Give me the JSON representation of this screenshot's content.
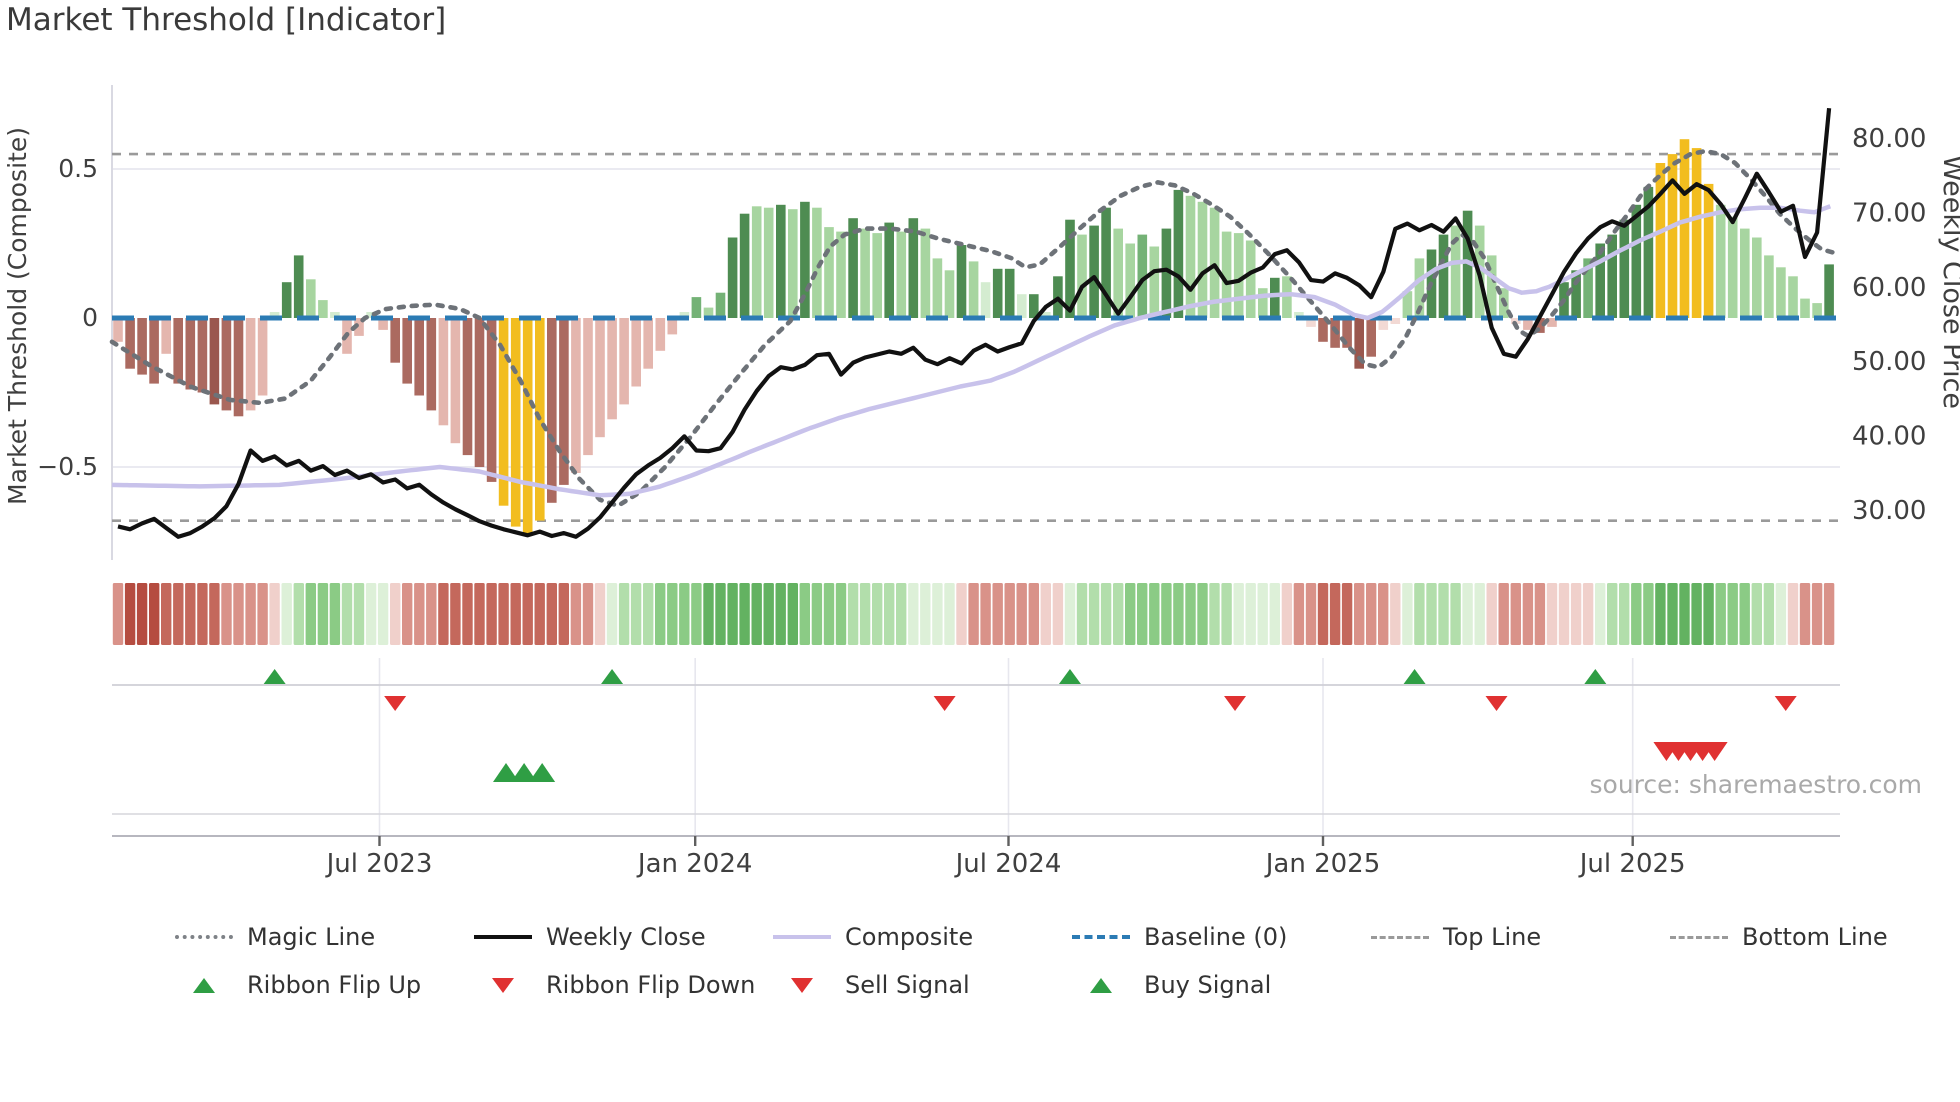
{
  "page": {
    "title": "Market Threshold [Indicator]",
    "source": "source: sharemaestro.com"
  },
  "chart_data": {
    "type": "bar",
    "title": "Market Threshold [Indicator]",
    "weeks": 143,
    "start_date": "2023-01-30",
    "frequency": "weekly",
    "left_axis": {
      "label": "Market Threshold (Composite)",
      "ticks": [
        "0.5",
        "0",
        "−0.5"
      ],
      "tick_values": [
        0.5,
        0,
        -0.5
      ],
      "range": [
        -0.81,
        0.78
      ]
    },
    "right_axis": {
      "label": "Weekly Close Price",
      "ticks": [
        "80.00",
        "70.00",
        "60.00",
        "50.00",
        "40.00",
        "30.00"
      ],
      "tick_values": [
        80,
        70,
        60,
        50,
        40,
        30
      ]
    },
    "x_axis": {
      "tick_labels": [
        "Jul 2023",
        "Jan 2024",
        "Jul 2024",
        "Jan 2025",
        "Jul 2025"
      ],
      "tick_weeks": [
        21.7,
        47.9,
        73.9,
        100.0,
        125.7
      ]
    },
    "baseline_value": 0,
    "top_line_value": 0.55,
    "bottom_line_value": -0.68,
    "histogram": {
      "values": [
        -0.08,
        -0.17,
        -0.19,
        -0.22,
        -0.12,
        -0.22,
        -0.24,
        -0.25,
        -0.29,
        -0.31,
        -0.33,
        -0.31,
        -0.26,
        0.02,
        0.12,
        0.21,
        0.13,
        0.06,
        0.02,
        -0.12,
        -0.06,
        0.02,
        -0.04,
        -0.15,
        -0.22,
        -0.26,
        -0.31,
        -0.36,
        -0.42,
        -0.46,
        -0.5,
        -0.55,
        -0.63,
        -0.7,
        -0.73,
        -0.68,
        -0.62,
        -0.56,
        -0.52,
        -0.46,
        -0.4,
        -0.34,
        -0.29,
        -0.23,
        -0.17,
        -0.11,
        -0.055,
        0.02,
        0.07,
        0.035,
        0.085,
        0.27,
        0.35,
        0.375,
        0.37,
        0.38,
        0.365,
        0.39,
        0.37,
        0.305,
        0.29,
        0.335,
        0.3,
        0.285,
        0.32,
        0.29,
        0.335,
        0.3,
        0.2,
        0.16,
        0.245,
        0.19,
        0.12,
        0.165,
        0.165,
        0.08,
        0.08,
        0.02,
        0.14,
        0.33,
        0.28,
        0.31,
        0.37,
        0.3,
        0.25,
        0.28,
        0.24,
        0.3,
        0.43,
        0.41,
        0.39,
        0.37,
        0.29,
        0.285,
        0.26,
        0.1,
        0.135,
        0.14,
        0.02,
        -0.03,
        -0.08,
        -0.1,
        -0.1,
        -0.17,
        -0.13,
        -0.04,
        -0.02,
        0.09,
        0.2,
        0.23,
        0.28,
        0.31,
        0.36,
        0.31,
        0.21,
        0.1,
        -0.02,
        -0.04,
        -0.05,
        -0.03,
        0.12,
        0.16,
        0.2,
        0.25,
        0.28,
        0.33,
        0.38,
        0.44,
        0.52,
        0.55,
        0.6,
        0.57,
        0.45,
        0.38,
        0.34,
        0.3,
        0.27,
        0.21,
        0.17,
        0.14,
        0.065,
        0.05,
        0.18
      ],
      "colors": [
        "lp",
        "mr",
        "mr",
        "mr",
        "lp",
        "mr",
        "mr",
        "mr",
        "dr",
        "mr",
        "mr",
        "lp",
        "lp",
        "vg",
        "dg",
        "dg",
        "lg",
        "lg",
        "vg",
        "lp",
        "lp",
        "vg",
        "lp",
        "mr",
        "mr",
        "mr",
        "mr",
        "lp",
        "lp",
        "mr",
        "mr",
        "mr",
        "gd",
        "gd",
        "gd",
        "gd",
        "mr",
        "mr",
        "lp",
        "lp",
        "lp",
        "lp",
        "lp",
        "lp",
        "lp",
        "lp",
        "lp",
        "vg",
        "mg",
        "lg",
        "mg",
        "dg",
        "dg",
        "lg",
        "lg",
        "dg",
        "lg",
        "dg",
        "lg",
        "lg",
        "lg",
        "dg",
        "lg",
        "lg",
        "dg",
        "lg",
        "dg",
        "lg",
        "lg",
        "lg",
        "dg",
        "lg",
        "vg",
        "dg",
        "dg",
        "vg",
        "dg",
        "vg",
        "dg",
        "dg",
        "lg",
        "dg",
        "dg",
        "lg",
        "lg",
        "mg",
        "lg",
        "dg",
        "dg",
        "lg",
        "lg",
        "lg",
        "lg",
        "lg",
        "lg",
        "lg",
        "dg",
        "lg",
        "vg",
        "vp",
        "mr",
        "mr",
        "mr",
        "dr",
        "mr",
        "vp",
        "vp",
        "lg",
        "lg",
        "dg",
        "dg",
        "lg",
        "dg",
        "lg",
        "lg",
        "lg",
        "vp",
        "lp",
        "mr",
        "lp",
        "dg",
        "dg",
        "mg",
        "dg",
        "dg",
        "dg",
        "dg",
        "dg",
        "gd",
        "gd",
        "gd",
        "gd",
        "gd",
        "lg",
        "lg",
        "lg",
        "lg",
        "lg",
        "lg",
        "lg",
        "lg",
        "lg",
        "dg"
      ]
    },
    "weekly_close": [
      27.8,
      27.4,
      28.2,
      28.8,
      27.6,
      26.4,
      26.9,
      27.8,
      28.9,
      30.5,
      33.5,
      38.0,
      36.6,
      37.2,
      36.0,
      36.6,
      35.3,
      35.9,
      34.7,
      35.3,
      34.3,
      34.8,
      33.7,
      34.1,
      32.9,
      33.4,
      32.1,
      31.0,
      30.1,
      29.3,
      28.5,
      27.9,
      27.4,
      27.0,
      26.6,
      27.1,
      26.5,
      26.9,
      26.4,
      27.5,
      29.0,
      31.0,
      33.0,
      34.8,
      36.0,
      37.0,
      38.3,
      39.9,
      38.0,
      37.9,
      38.3,
      40.5,
      43.5,
      46.0,
      48.0,
      49.2,
      48.9,
      49.5,
      50.8,
      51.0,
      48.2,
      49.8,
      50.5,
      50.9,
      51.3,
      51.0,
      51.8,
      50.2,
      49.6,
      50.4,
      49.7,
      51.4,
      52.2,
      51.3,
      51.9,
      52.4,
      55.4,
      57.3,
      58.4,
      56.8,
      60.0,
      61.3,
      58.9,
      56.4,
      58.6,
      60.9,
      62.1,
      62.3,
      61.4,
      59.6,
      61.8,
      62.9,
      60.5,
      60.8,
      61.9,
      62.6,
      64.4,
      64.9,
      63.3,
      60.9,
      60.7,
      61.8,
      61.2,
      60.2,
      58.6,
      62.0,
      67.8,
      68.5,
      67.6,
      68.3,
      67.4,
      69.2,
      66.5,
      61.5,
      54.5,
      51.0,
      50.6,
      53.0,
      56.0,
      59.0,
      62.0,
      64.5,
      66.5,
      68.0,
      68.8,
      68.2,
      69.5,
      70.8,
      72.5,
      74.3,
      72.5,
      73.8,
      73.0,
      71.1,
      68.7,
      71.9,
      75.2,
      72.7,
      70.1,
      70.9,
      64.0,
      67.3,
      84.0
    ],
    "magic_line_keypoints": [
      [
        -0.5,
        -0.08
      ],
      [
        2.7,
        -0.16
      ],
      [
        6.0,
        -0.23
      ],
      [
        9.3,
        -0.275
      ],
      [
        11.8,
        -0.285
      ],
      [
        13.9,
        -0.27
      ],
      [
        16.0,
        -0.21
      ],
      [
        17.6,
        -0.13
      ],
      [
        19.1,
        -0.05
      ],
      [
        20.5,
        0.0
      ],
      [
        22.2,
        0.03
      ],
      [
        24.2,
        0.04
      ],
      [
        26.3,
        0.045
      ],
      [
        28.4,
        0.03
      ],
      [
        30.0,
        0.0
      ],
      [
        31.7,
        -0.09
      ],
      [
        33.4,
        -0.21
      ],
      [
        35.0,
        -0.34
      ],
      [
        36.7,
        -0.45
      ],
      [
        38.3,
        -0.54
      ],
      [
        40.0,
        -0.61
      ],
      [
        41.5,
        -0.63
      ],
      [
        43.3,
        -0.585
      ],
      [
        45.4,
        -0.5
      ],
      [
        47.5,
        -0.4
      ],
      [
        49.5,
        -0.295
      ],
      [
        51.6,
        -0.19
      ],
      [
        53.7,
        -0.09
      ],
      [
        55.8,
        -0.01
      ],
      [
        57.0,
        0.08
      ],
      [
        58.1,
        0.17
      ],
      [
        59.1,
        0.24
      ],
      [
        60.3,
        0.28
      ],
      [
        62.0,
        0.3
      ],
      [
        64.1,
        0.3
      ],
      [
        66.2,
        0.29
      ],
      [
        68.2,
        0.265
      ],
      [
        70.3,
        0.245
      ],
      [
        72.4,
        0.225
      ],
      [
        74.2,
        0.2
      ],
      [
        75.3,
        0.17
      ],
      [
        76.5,
        0.18
      ],
      [
        78.2,
        0.24
      ],
      [
        79.8,
        0.3
      ],
      [
        81.5,
        0.36
      ],
      [
        83.2,
        0.41
      ],
      [
        84.8,
        0.44
      ],
      [
        86.3,
        0.455
      ],
      [
        87.7,
        0.445
      ],
      [
        89.1,
        0.42
      ],
      [
        90.6,
        0.385
      ],
      [
        92.3,
        0.34
      ],
      [
        93.9,
        0.28
      ],
      [
        95.6,
        0.21
      ],
      [
        97.3,
        0.135
      ],
      [
        98.9,
        0.06
      ],
      [
        100.6,
        -0.02
      ],
      [
        102.2,
        -0.1
      ],
      [
        103.5,
        -0.155
      ],
      [
        104.6,
        -0.165
      ],
      [
        105.7,
        -0.13
      ],
      [
        106.8,
        -0.07
      ],
      [
        107.9,
        0.02
      ],
      [
        108.9,
        0.11
      ],
      [
        109.9,
        0.19
      ],
      [
        110.7,
        0.25
      ],
      [
        111.5,
        0.28
      ],
      [
        112.4,
        0.26
      ],
      [
        113.4,
        0.2
      ],
      [
        114.4,
        0.11
      ],
      [
        115.4,
        0.02
      ],
      [
        116.2,
        -0.04
      ],
      [
        117.0,
        -0.06
      ],
      [
        118.0,
        -0.035
      ],
      [
        119.0,
        0.01
      ],
      [
        120.0,
        0.06
      ],
      [
        121.0,
        0.12
      ],
      [
        122.0,
        0.17
      ],
      [
        123.0,
        0.22
      ],
      [
        124.2,
        0.29
      ],
      [
        125.5,
        0.36
      ],
      [
        126.7,
        0.43
      ],
      [
        128.0,
        0.48
      ],
      [
        129.2,
        0.52
      ],
      [
        130.5,
        0.55
      ],
      [
        131.7,
        0.56
      ],
      [
        133.0,
        0.55
      ],
      [
        134.2,
        0.52
      ],
      [
        135.4,
        0.47
      ],
      [
        136.7,
        0.41
      ],
      [
        137.9,
        0.35
      ],
      [
        139.2,
        0.3
      ],
      [
        140.4,
        0.26
      ],
      [
        141.4,
        0.23
      ],
      [
        142.3,
        0.22
      ]
    ],
    "composite_keypoints": [
      [
        -0.5,
        -0.56
      ],
      [
        6.8,
        -0.565
      ],
      [
        13.4,
        -0.56
      ],
      [
        18.4,
        -0.54
      ],
      [
        23.4,
        -0.515
      ],
      [
        26.7,
        -0.5
      ],
      [
        30.0,
        -0.515
      ],
      [
        33.4,
        -0.55
      ],
      [
        36.7,
        -0.575
      ],
      [
        40.0,
        -0.595
      ],
      [
        42.5,
        -0.59
      ],
      [
        45.0,
        -0.565
      ],
      [
        47.5,
        -0.53
      ],
      [
        50.0,
        -0.49
      ],
      [
        52.4,
        -0.45
      ],
      [
        54.9,
        -0.41
      ],
      [
        57.4,
        -0.37
      ],
      [
        59.9,
        -0.335
      ],
      [
        62.4,
        -0.305
      ],
      [
        64.9,
        -0.28
      ],
      [
        67.4,
        -0.255
      ],
      [
        69.9,
        -0.23
      ],
      [
        72.4,
        -0.21
      ],
      [
        74.4,
        -0.18
      ],
      [
        76.5,
        -0.14
      ],
      [
        78.6,
        -0.1
      ],
      [
        80.7,
        -0.06
      ],
      [
        82.7,
        -0.025
      ],
      [
        84.8,
        0.0
      ],
      [
        86.9,
        0.02
      ],
      [
        89.0,
        0.04
      ],
      [
        91.0,
        0.055
      ],
      [
        93.1,
        0.065
      ],
      [
        95.2,
        0.075
      ],
      [
        97.3,
        0.08
      ],
      [
        99.3,
        0.07
      ],
      [
        101.0,
        0.045
      ],
      [
        102.6,
        0.01
      ],
      [
        103.7,
        0.0
      ],
      [
        104.9,
        0.02
      ],
      [
        106.4,
        0.07
      ],
      [
        107.9,
        0.125
      ],
      [
        109.4,
        0.165
      ],
      [
        110.7,
        0.185
      ],
      [
        111.9,
        0.19
      ],
      [
        113.0,
        0.17
      ],
      [
        114.2,
        0.135
      ],
      [
        115.4,
        0.1
      ],
      [
        116.5,
        0.085
      ],
      [
        117.7,
        0.09
      ],
      [
        118.8,
        0.105
      ],
      [
        120.1,
        0.13
      ],
      [
        121.3,
        0.155
      ],
      [
        123.0,
        0.19
      ],
      [
        124.6,
        0.225
      ],
      [
        126.3,
        0.26
      ],
      [
        128.0,
        0.29
      ],
      [
        129.6,
        0.32
      ],
      [
        131.3,
        0.34
      ],
      [
        133.0,
        0.355
      ],
      [
        134.6,
        0.365
      ],
      [
        136.3,
        0.37
      ],
      [
        137.9,
        0.37
      ],
      [
        139.6,
        0.36
      ],
      [
        140.8,
        0.355
      ],
      [
        142.1,
        0.375
      ]
    ],
    "ribbon": [
      "r1",
      "r3",
      "r3",
      "r3",
      "r2",
      "r2",
      "r2",
      "r2",
      "r2",
      "r1",
      "r1",
      "r1",
      "r1",
      "r0",
      "g0",
      "g1",
      "g2",
      "g2",
      "g2",
      "g1",
      "g1",
      "g0",
      "g0",
      "r0",
      "r1",
      "r1",
      "r1",
      "r2",
      "r2",
      "r2",
      "r2",
      "r2",
      "r2",
      "r2",
      "r2",
      "r2",
      "r2",
      "r2",
      "r1",
      "r1",
      "r0",
      "g0",
      "g1",
      "g1",
      "g1",
      "g2",
      "g2",
      "g2",
      "g2",
      "g3",
      "g3",
      "g3",
      "g3",
      "g3",
      "g3",
      "g3",
      "g3",
      "g2",
      "g2",
      "g2",
      "g2",
      "g1",
      "g1",
      "g1",
      "g1",
      "g1",
      "g0",
      "g0",
      "g0",
      "g0",
      "r0",
      "r1",
      "r1",
      "r1",
      "r1",
      "r1",
      "r1",
      "r0",
      "r0",
      "g0",
      "g1",
      "g1",
      "g1",
      "g1",
      "g2",
      "g2",
      "g2",
      "g2",
      "g2",
      "g2",
      "g2",
      "g1",
      "g1",
      "g0",
      "g0",
      "g0",
      "g0",
      "r0",
      "r1",
      "r1",
      "r2",
      "r2",
      "r2",
      "r1",
      "r1",
      "r1",
      "r0",
      "g0",
      "g1",
      "g1",
      "g1",
      "g1",
      "g0",
      "g0",
      "r0",
      "r1",
      "r1",
      "r1",
      "r1",
      "r0",
      "r0",
      "r0",
      "r0",
      "g0",
      "g1",
      "g1",
      "g2",
      "g2",
      "g3",
      "g3",
      "g3",
      "g3",
      "g3",
      "g2",
      "g2",
      "g2",
      "g1",
      "g1",
      "g0",
      "r0",
      "r1",
      "r1",
      "r1"
    ],
    "signals": {
      "flip_up_weeks": [
        13.0,
        41.0,
        79.0,
        107.6,
        122.6
      ],
      "flip_down_weeks": [
        23.0,
        68.6,
        92.7,
        114.4,
        138.4
      ],
      "buy_weeks": [
        32.2,
        33.7,
        35.2
      ],
      "sell_weeks": [
        128.5,
        129.5,
        130.5,
        131.5,
        132.5
      ]
    },
    "palette": {
      "bar": {
        "dr": "#9a574e",
        "mr": "#ab6a60",
        "lp": "#e4b6ae",
        "vp": "#f2d9d4",
        "gd": "#f2bd1f",
        "dg": "#4e8c52",
        "mg": "#74b276",
        "lg": "#a7d5a0",
        "vg": "#d4ecd0"
      },
      "ribbon": {
        "r3": "#b54c40",
        "r2": "#c4685c",
        "r1": "#d99289",
        "r0": "#f0d0cb",
        "g0": "#ddf0d8",
        "g1": "#b2deab",
        "g2": "#8bcb85",
        "g3": "#63b261"
      },
      "baseline": "#2b7bb4",
      "magic_line": "#6d7278",
      "weekly_close": "#111111",
      "composite": "#c8c2eb",
      "guide_lines": "#9a9a9a",
      "buy_green": "#2f9e44",
      "sell_red": "#e03131"
    },
    "legend_position": "bottom",
    "grid": "horizontal-light"
  },
  "legend": {
    "items": [
      {
        "label": "Magic Line"
      },
      {
        "label": "Weekly Close"
      },
      {
        "label": "Composite"
      },
      {
        "label": "Baseline (0)"
      },
      {
        "label": "Top Line"
      },
      {
        "label": "Bottom Line"
      },
      {
        "label": "Ribbon Flip Up"
      },
      {
        "label": "Ribbon Flip Down"
      },
      {
        "label": "Sell Signal"
      },
      {
        "label": "Buy Signal"
      }
    ]
  }
}
